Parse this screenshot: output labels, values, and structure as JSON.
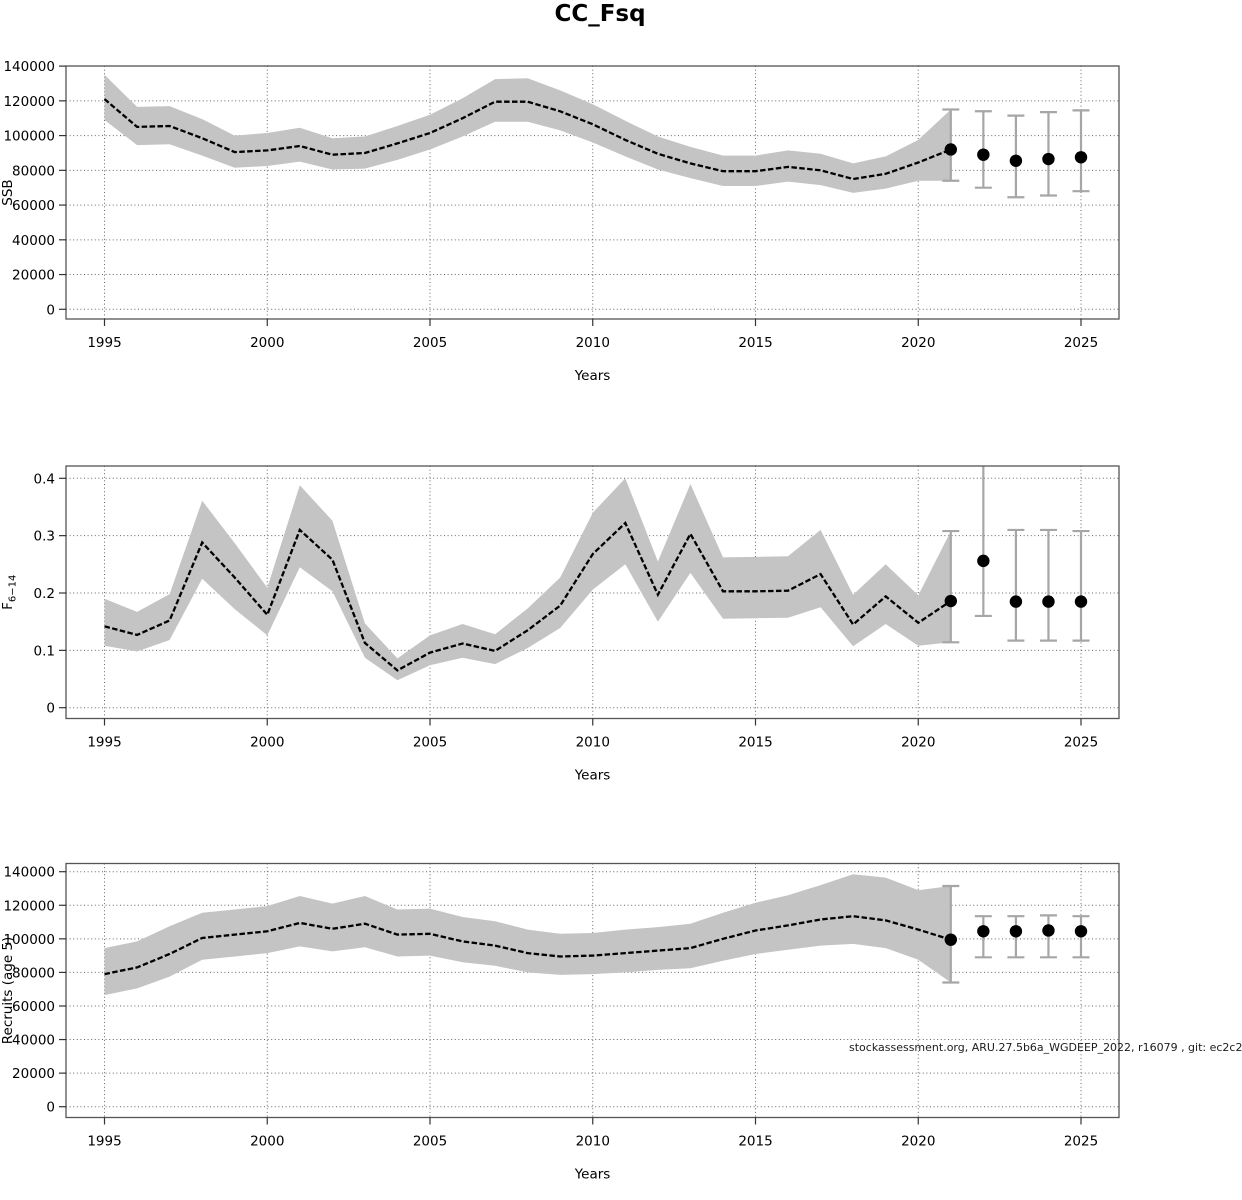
{
  "title": "CC_Fsq",
  "watermark": "stockassessment.org, ARU.27.5b6a_WGDEEP_2022, r16079 , git: ec2c2",
  "colors": {
    "band": "#c4c4c4",
    "line": "#000000",
    "dot": "#000000",
    "whisker": "#a6a6a6",
    "grid": "#666666",
    "box": "#555555",
    "tick": "#333333",
    "text": "#000000"
  },
  "chart_data": [
    {
      "type": "line",
      "id": "ssb",
      "ylabel": "SSB",
      "xlabel": "Years",
      "ylim": [
        0,
        140000
      ],
      "yticks": [
        0,
        20000,
        40000,
        60000,
        80000,
        100000,
        120000,
        140000
      ],
      "xticks": [
        1995,
        2000,
        2005,
        2010,
        2015,
        2020,
        2025
      ],
      "grid": true,
      "legend": "none",
      "years": [
        1995,
        1996,
        1997,
        1998,
        1999,
        2000,
        2001,
        2002,
        2003,
        2004,
        2005,
        2006,
        2007,
        2008,
        2009,
        2010,
        2011,
        2012,
        2013,
        2014,
        2015,
        2016,
        2017,
        2018,
        2019,
        2020,
        2021
      ],
      "values": [
        121000,
        105000,
        105500,
        98500,
        90500,
        91500,
        94000,
        89000,
        90000,
        95500,
        101500,
        110000,
        119500,
        119500,
        114000,
        106500,
        97500,
        89500,
        84000,
        79500,
        79500,
        82000,
        80000,
        75000,
        78000,
        84500,
        92000
      ],
      "band_lower": [
        109000,
        94500,
        95000,
        88500,
        81500,
        82500,
        85000,
        80500,
        81000,
        86000,
        92000,
        99500,
        108000,
        108000,
        103000,
        96000,
        88000,
        80500,
        75500,
        71000,
        71000,
        73500,
        71500,
        67000,
        69500,
        74000,
        74000
      ],
      "band_upper": [
        135000,
        116500,
        117000,
        109500,
        100000,
        101500,
        104500,
        98500,
        99500,
        105500,
        112000,
        121500,
        132500,
        133000,
        126000,
        118000,
        108500,
        99500,
        93500,
        88500,
        88500,
        91500,
        89500,
        84000,
        88000,
        97500,
        115000
      ],
      "last_year_dot": {
        "year": 2021,
        "value": 92000,
        "lower": 74000,
        "upper": 115000
      },
      "forecast": {
        "years": [
          2022,
          2023,
          2024,
          2025
        ],
        "values": [
          89000,
          85500,
          86500,
          87500
        ],
        "lower": [
          70000,
          64500,
          65500,
          68000
        ],
        "upper": [
          114000,
          111500,
          113500,
          114500
        ]
      }
    },
    {
      "type": "line",
      "id": "f6-14",
      "ylabel": "F",
      "ylabel_sub": "6−14",
      "xlabel": "Years",
      "ylim": [
        0,
        0.4
      ],
      "yticks": [
        0.0,
        0.1,
        0.2,
        0.3,
        0.4
      ],
      "xticks": [
        1995,
        2000,
        2005,
        2010,
        2015,
        2020,
        2025
      ],
      "grid": true,
      "legend": "none",
      "years": [
        1995,
        1996,
        1997,
        1998,
        1999,
        2000,
        2001,
        2002,
        2003,
        2004,
        2005,
        2006,
        2007,
        2008,
        2009,
        2010,
        2011,
        2012,
        2013,
        2014,
        2015,
        2016,
        2017,
        2018,
        2019,
        2020,
        2021
      ],
      "values": [
        0.142,
        0.127,
        0.152,
        0.288,
        0.227,
        0.162,
        0.31,
        0.258,
        0.113,
        0.065,
        0.096,
        0.112,
        0.099,
        0.135,
        0.178,
        0.268,
        0.322,
        0.197,
        0.303,
        0.203,
        0.203,
        0.204,
        0.233,
        0.145,
        0.194,
        0.148,
        0.186
      ],
      "band_lower": [
        0.108,
        0.098,
        0.118,
        0.225,
        0.172,
        0.126,
        0.245,
        0.203,
        0.087,
        0.048,
        0.074,
        0.087,
        0.076,
        0.104,
        0.139,
        0.206,
        0.25,
        0.15,
        0.235,
        0.155,
        0.156,
        0.157,
        0.175,
        0.107,
        0.146,
        0.108,
        0.114
      ],
      "band_upper": [
        0.19,
        0.167,
        0.198,
        0.361,
        0.287,
        0.209,
        0.388,
        0.326,
        0.147,
        0.086,
        0.126,
        0.146,
        0.128,
        0.173,
        0.227,
        0.34,
        0.4,
        0.255,
        0.39,
        0.262,
        0.263,
        0.264,
        0.31,
        0.197,
        0.25,
        0.196,
        0.308
      ],
      "last_year_dot": {
        "year": 2021,
        "value": 0.186,
        "lower": 0.114,
        "upper": 0.308
      },
      "forecast": {
        "years": [
          2022,
          2023,
          2024,
          2025
        ],
        "values": [
          0.256,
          0.185,
          0.185,
          0.185
        ],
        "lower": [
          0.16,
          0.117,
          0.117,
          0.117
        ],
        "upper": [
          null,
          0.31,
          0.31,
          0.308
        ]
      }
    },
    {
      "type": "line",
      "id": "recruits",
      "ylabel": "Recruits (age 5)",
      "xlabel": "Years",
      "ylim": [
        0,
        140000
      ],
      "yticks": [
        0,
        20000,
        40000,
        60000,
        80000,
        100000,
        120000,
        140000
      ],
      "xticks": [
        1995,
        2000,
        2005,
        2010,
        2015,
        2020,
        2025
      ],
      "grid": true,
      "legend": "none",
      "years": [
        1995,
        1996,
        1997,
        1998,
        1999,
        2000,
        2001,
        2002,
        2003,
        2004,
        2005,
        2006,
        2007,
        2008,
        2009,
        2010,
        2011,
        2012,
        2013,
        2014,
        2015,
        2016,
        2017,
        2018,
        2019,
        2020,
        2021
      ],
      "values": [
        79000,
        83000,
        91000,
        100500,
        102500,
        104500,
        109500,
        106000,
        109000,
        102500,
        103000,
        98500,
        96000,
        91500,
        89500,
        90000,
        91500,
        93000,
        94500,
        100000,
        105000,
        108000,
        111500,
        113500,
        111000,
        105500,
        99500
      ],
      "band_lower": [
        66500,
        70500,
        77500,
        87500,
        89500,
        91500,
        95500,
        92500,
        95000,
        89500,
        90000,
        86000,
        84000,
        80000,
        78500,
        79000,
        80000,
        81500,
        82500,
        87000,
        91000,
        93500,
        96000,
        97000,
        94500,
        87500,
        74000
      ],
      "band_upper": [
        94500,
        98500,
        107500,
        115500,
        117500,
        119500,
        125500,
        121000,
        125500,
        117500,
        118000,
        113000,
        110500,
        105500,
        103000,
        103500,
        105500,
        107000,
        109000,
        115500,
        121500,
        126000,
        132000,
        138500,
        136500,
        129000,
        131500
      ],
      "last_year_dot": {
        "year": 2021,
        "value": 99500,
        "lower": 74000,
        "upper": 131500
      },
      "forecast": {
        "years": [
          2022,
          2023,
          2024,
          2025
        ],
        "values": [
          104500,
          104500,
          105000,
          104500
        ],
        "lower": [
          89000,
          89000,
          89000,
          89000
        ],
        "upper": [
          113500,
          113500,
          114000,
          113500
        ]
      }
    }
  ]
}
